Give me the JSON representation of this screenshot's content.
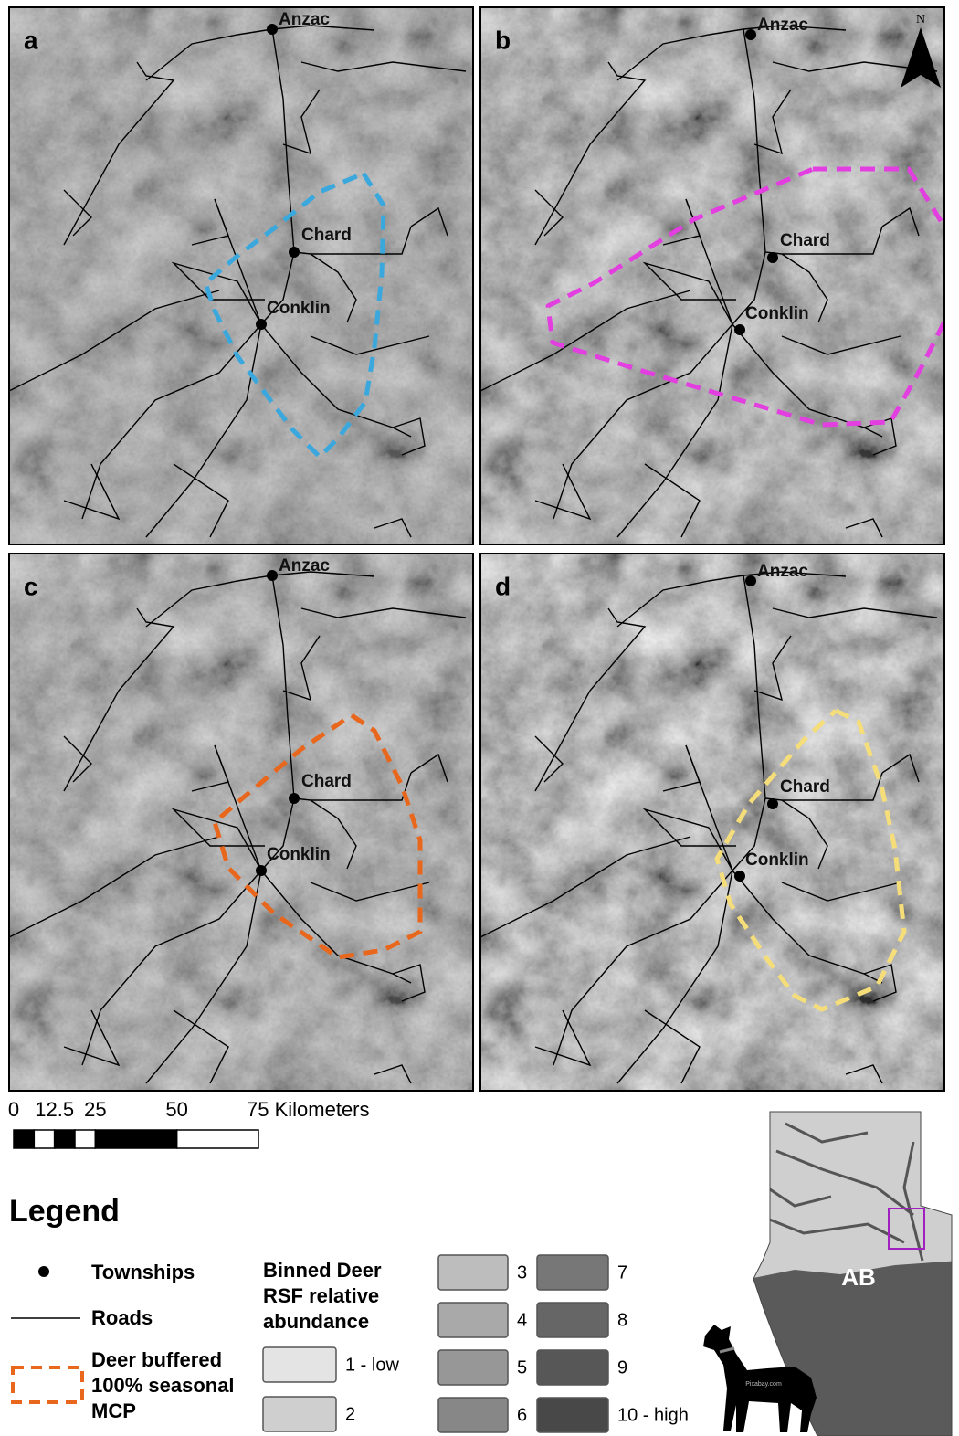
{
  "panels": [
    {
      "label": "a",
      "towns": [
        "Anzac",
        "Chard",
        "Conklin"
      ],
      "mcp_color": "#3ba8dd"
    },
    {
      "label": "b",
      "towns": [
        "Anzac",
        "Chard",
        "Conklin"
      ],
      "mcp_color": "#e23ee0"
    },
    {
      "label": "c",
      "towns": [
        "Anzac",
        "Chard",
        "Conklin"
      ],
      "mcp_color": "#e8671c"
    },
    {
      "label": "d",
      "towns": [
        "Anzac",
        "Chard",
        "Conklin"
      ],
      "mcp_color": "#f5de7a"
    }
  ],
  "north": "N",
  "scale_bar": {
    "ticks": [
      0,
      12.5,
      25,
      50,
      {
        "value": 75,
        "label": "75 Kilometers"
      }
    ]
  },
  "legend": {
    "title": "Legend",
    "townships": "Townships",
    "roads": "Roads",
    "mcp": [
      "Deer buffered",
      "100% seasonal",
      "MCP"
    ],
    "mcp_color": "#e8671c",
    "rsf_title": [
      "Binned Deer",
      "RSF relative",
      "abundance"
    ],
    "bins": [
      {
        "label": "1 - low",
        "color": "#e4e4e4"
      },
      {
        "label": "2",
        "color": "#cfcfcf"
      },
      {
        "label": "3",
        "color": "#bdbdbd"
      },
      {
        "label": "4",
        "color": "#a9a9a9"
      },
      {
        "label": "5",
        "color": "#979797"
      },
      {
        "label": "6",
        "color": "#878787"
      },
      {
        "label": "7",
        "color": "#777777"
      },
      {
        "label": "8",
        "color": "#666666"
      },
      {
        "label": "9",
        "color": "#575757"
      },
      {
        "label": "10 - high",
        "color": "#484848"
      }
    ]
  },
  "inset": {
    "label": "AB",
    "credit": "Pixabay.com"
  }
}
